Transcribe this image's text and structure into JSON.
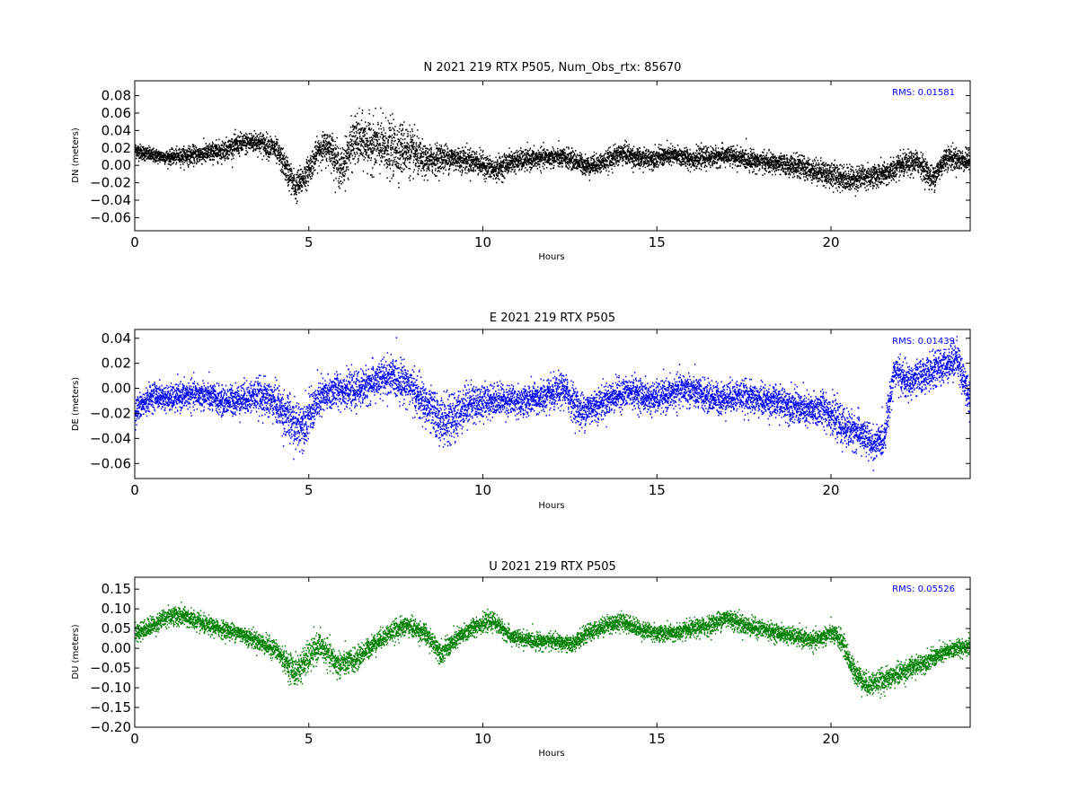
{
  "chart_data": [
    {
      "type": "scatter",
      "title": "N 2021 219 RTX  P505, Num_Obs_rtx: 85670",
      "xlabel": "Hours",
      "ylabel": "DN (meters)",
      "xlim": [
        0,
        24
      ],
      "ylim": [
        -0.075,
        0.097
      ],
      "xticks": [
        0,
        5,
        10,
        15,
        20
      ],
      "xtick_labels": [
        "0",
        "5",
        "10",
        "15",
        "20"
      ],
      "yticks": [
        -0.06,
        -0.04,
        -0.02,
        0.0,
        0.02,
        0.04,
        0.06,
        0.08
      ],
      "ytick_labels": [
        "−0.06",
        "−0.04",
        "−0.02",
        "0.00",
        "0.02",
        "0.04",
        "0.06",
        "0.08"
      ],
      "color": "#000000",
      "annotation": "RMS:  0.01581",
      "annotation_color": "#0000ff",
      "series_trend": {
        "x": [
          0,
          0.5,
          1,
          1.5,
          2,
          2.5,
          3,
          3.5,
          4,
          4.3,
          4.6,
          4.9,
          5.3,
          5.6,
          5.9,
          6.3,
          6.8,
          7.3,
          7.8,
          8.3,
          8.8,
          9.3,
          9.8,
          10.3,
          10.8,
          11.5,
          12,
          12.5,
          13,
          13.5,
          14,
          14.5,
          15,
          15.5,
          16,
          16.5,
          17,
          17.5,
          18,
          18.5,
          19,
          19.5,
          20,
          20.5,
          21,
          21.5,
          22,
          22.5,
          22.9,
          23.3,
          24
        ],
        "y": [
          0.018,
          0.012,
          0.01,
          0.012,
          0.014,
          0.018,
          0.025,
          0.028,
          0.02,
          0.0,
          -0.025,
          -0.01,
          0.02,
          0.022,
          -0.005,
          0.03,
          0.025,
          0.02,
          0.02,
          0.005,
          0.01,
          0.008,
          0.005,
          -0.005,
          0.005,
          0.008,
          0.01,
          0.008,
          0.0,
          0.005,
          0.015,
          0.008,
          0.01,
          0.012,
          0.008,
          0.01,
          0.012,
          0.008,
          0.005,
          0.002,
          0.0,
          -0.005,
          -0.01,
          -0.015,
          -0.012,
          -0.01,
          0.0,
          0.005,
          -0.015,
          0.01,
          0.005
        ],
        "spread": [
          0.008,
          0.007,
          0.007,
          0.009,
          0.01,
          0.01,
          0.011,
          0.011,
          0.012,
          0.014,
          0.016,
          0.014,
          0.014,
          0.018,
          0.02,
          0.025,
          0.026,
          0.028,
          0.026,
          0.016,
          0.014,
          0.013,
          0.012,
          0.012,
          0.011,
          0.01,
          0.01,
          0.01,
          0.01,
          0.01,
          0.011,
          0.01,
          0.01,
          0.01,
          0.01,
          0.01,
          0.01,
          0.01,
          0.01,
          0.01,
          0.011,
          0.012,
          0.013,
          0.013,
          0.012,
          0.012,
          0.012,
          0.012,
          0.013,
          0.012,
          0.01
        ]
      }
    },
    {
      "type": "scatter",
      "title": "E 2021 219 RTX  P505",
      "xlabel": "Hours",
      "ylabel": "DE (meters)",
      "xlim": [
        0,
        24
      ],
      "ylim": [
        -0.072,
        0.047
      ],
      "xticks": [
        0,
        5,
        10,
        15,
        20
      ],
      "xtick_labels": [
        "0",
        "5",
        "10",
        "15",
        "20"
      ],
      "yticks": [
        -0.06,
        -0.04,
        -0.02,
        0.0,
        0.02,
        0.04
      ],
      "ytick_labels": [
        "−0.06",
        "−0.04",
        "−0.02",
        "0.00",
        "0.02",
        "0.04"
      ],
      "color": "#0000ff",
      "annotation": "RMS:  0.01439",
      "annotation_color": "#0000ff",
      "series_trend": {
        "x": [
          0,
          0.5,
          1,
          1.5,
          2,
          2.5,
          3,
          3.5,
          4,
          4.3,
          4.6,
          4.9,
          5.3,
          5.8,
          6.3,
          6.8,
          7.3,
          7.8,
          8.3,
          8.8,
          9.1,
          9.5,
          10,
          10.5,
          11,
          11.5,
          12,
          12.3,
          12.8,
          13.3,
          13.8,
          14.3,
          14.8,
          15.3,
          15.8,
          16.3,
          16.8,
          17.3,
          17.8,
          18.3,
          18.8,
          19.3,
          19.8,
          20.3,
          20.8,
          21.2,
          21.5,
          21.8,
          22.2,
          22.7,
          23.2,
          23.6,
          24
        ],
        "y": [
          -0.018,
          -0.005,
          -0.008,
          -0.005,
          -0.005,
          -0.01,
          -0.008,
          -0.005,
          -0.01,
          -0.02,
          -0.03,
          -0.025,
          -0.008,
          0.0,
          -0.002,
          0.005,
          0.01,
          0.005,
          -0.012,
          -0.025,
          -0.025,
          -0.012,
          -0.01,
          -0.008,
          -0.01,
          -0.008,
          -0.005,
          0.0,
          -0.018,
          -0.012,
          -0.005,
          -0.002,
          -0.008,
          -0.005,
          0.0,
          -0.005,
          -0.008,
          -0.005,
          -0.008,
          -0.01,
          -0.012,
          -0.018,
          -0.015,
          -0.03,
          -0.035,
          -0.045,
          -0.04,
          0.015,
          0.005,
          0.012,
          0.018,
          0.025,
          -0.01
        ],
        "spread": [
          0.01,
          0.009,
          0.009,
          0.01,
          0.01,
          0.01,
          0.011,
          0.012,
          0.014,
          0.016,
          0.018,
          0.016,
          0.014,
          0.012,
          0.012,
          0.013,
          0.014,
          0.014,
          0.015,
          0.017,
          0.017,
          0.015,
          0.012,
          0.011,
          0.011,
          0.011,
          0.012,
          0.012,
          0.013,
          0.012,
          0.011,
          0.011,
          0.011,
          0.011,
          0.012,
          0.011,
          0.011,
          0.011,
          0.011,
          0.011,
          0.012,
          0.012,
          0.013,
          0.013,
          0.013,
          0.012,
          0.011,
          0.012,
          0.012,
          0.012,
          0.012,
          0.013,
          0.013
        ]
      }
    },
    {
      "type": "scatter",
      "title": "U 2021 219 RTX  P505",
      "xlabel": "Hours",
      "ylabel": "DU (meters)",
      "xlim": [
        0,
        24
      ],
      "ylim": [
        -0.2,
        0.18
      ],
      "xticks": [
        0,
        5,
        10,
        15,
        20
      ],
      "xtick_labels": [
        "0",
        "5",
        "10",
        "15",
        "20"
      ],
      "yticks": [
        -0.2,
        -0.15,
        -0.1,
        -0.05,
        0.0,
        0.05,
        0.1,
        0.15
      ],
      "ytick_labels": [
        "−0.20",
        "−0.15",
        "−0.10",
        "−0.05",
        "0.00",
        "0.05",
        "0.10",
        "0.15"
      ],
      "color": "#008000",
      "annotation": "RMS:  0.05526",
      "annotation_color": "#0000ff",
      "series_trend": {
        "x": [
          0,
          0.5,
          1,
          1.5,
          2,
          2.5,
          3,
          3.5,
          4,
          4.3,
          4.6,
          4.9,
          5.3,
          5.8,
          6.3,
          6.8,
          7.3,
          7.8,
          8.3,
          8.8,
          9.3,
          9.8,
          10.3,
          10.8,
          11.5,
          12,
          12.5,
          13,
          13.5,
          14,
          14.5,
          15,
          15.5,
          16,
          16.5,
          17,
          17.5,
          18,
          18.5,
          19,
          19.5,
          20,
          20.3,
          20.6,
          21,
          21.5,
          22,
          22.5,
          23,
          23.5,
          24
        ],
        "y": [
          0.04,
          0.06,
          0.085,
          0.08,
          0.06,
          0.05,
          0.04,
          0.02,
          0.0,
          -0.03,
          -0.06,
          -0.03,
          0.01,
          -0.04,
          -0.03,
          0.01,
          0.04,
          0.06,
          0.04,
          -0.01,
          0.03,
          0.06,
          0.07,
          0.03,
          0.02,
          0.02,
          0.01,
          0.04,
          0.06,
          0.07,
          0.05,
          0.04,
          0.04,
          0.05,
          0.06,
          0.08,
          0.06,
          0.05,
          0.04,
          0.03,
          0.02,
          0.04,
          0.02,
          -0.05,
          -0.09,
          -0.08,
          -0.06,
          -0.04,
          -0.02,
          0.0,
          0.01
        ],
        "spread": [
          0.02,
          0.02,
          0.022,
          0.022,
          0.02,
          0.019,
          0.019,
          0.02,
          0.022,
          0.026,
          0.035,
          0.035,
          0.03,
          0.03,
          0.026,
          0.022,
          0.022,
          0.022,
          0.022,
          0.024,
          0.022,
          0.02,
          0.019,
          0.018,
          0.018,
          0.018,
          0.018,
          0.019,
          0.02,
          0.02,
          0.019,
          0.019,
          0.019,
          0.02,
          0.021,
          0.022,
          0.021,
          0.02,
          0.019,
          0.019,
          0.02,
          0.021,
          0.024,
          0.026,
          0.026,
          0.025,
          0.024,
          0.022,
          0.021,
          0.02,
          0.02
        ]
      }
    }
  ]
}
